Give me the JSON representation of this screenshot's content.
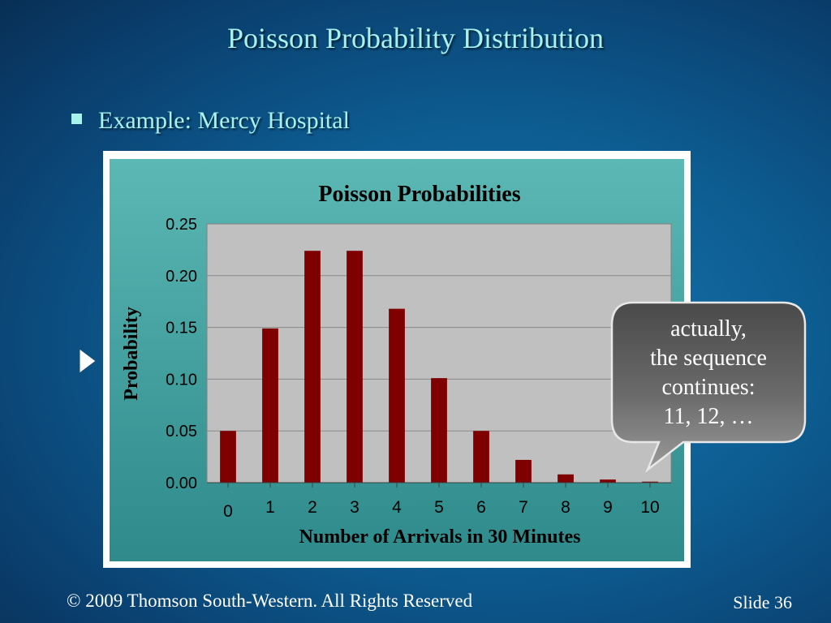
{
  "slide": {
    "title": "Poisson Probability Distribution",
    "bullet": "Example:  Mercy Hospital",
    "footer_left": "© 2009  Thomson South-Western.  All Rights Reserved",
    "footer_right": "Slide 36"
  },
  "callout": {
    "lines": [
      "actually,",
      "the sequence",
      "continues:",
      "11, 12, …"
    ]
  },
  "colors": {
    "bar": "#7f0000",
    "plot_bg": "#c0c0c0",
    "title_text": "#a8f2ee"
  },
  "chart_data": {
    "type": "bar",
    "title": "Poisson Probabilities",
    "xlabel": "Number of Arrivals in 30 Minutes",
    "ylabel": "Probability",
    "categories": [
      "0",
      "1",
      "2",
      "3",
      "4",
      "5",
      "6",
      "7",
      "8",
      "9",
      "10"
    ],
    "values": [
      0.05,
      0.149,
      0.224,
      0.224,
      0.168,
      0.101,
      0.05,
      0.022,
      0.008,
      0.003,
      0.001
    ],
    "ylim": [
      0,
      0.25
    ],
    "yticks": [
      "0.00",
      "0.05",
      "0.10",
      "0.15",
      "0.20",
      "0.25"
    ],
    "grid": true
  }
}
